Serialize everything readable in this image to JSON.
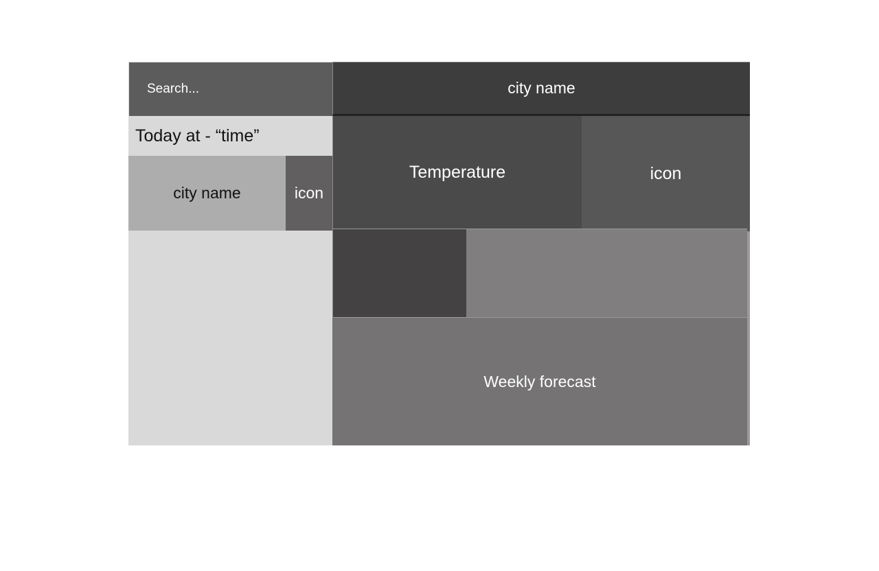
{
  "sidebar": {
    "search": {
      "placeholder": "Search..."
    },
    "today_label": "Today at - “time”",
    "saved_city": {
      "name": "city name",
      "icon_label": "icon"
    }
  },
  "main": {
    "header_city": "city name",
    "current": {
      "temperature_label": "Temperature",
      "icon_label": "icon"
    },
    "weekly_label": "Weekly forecast"
  }
}
